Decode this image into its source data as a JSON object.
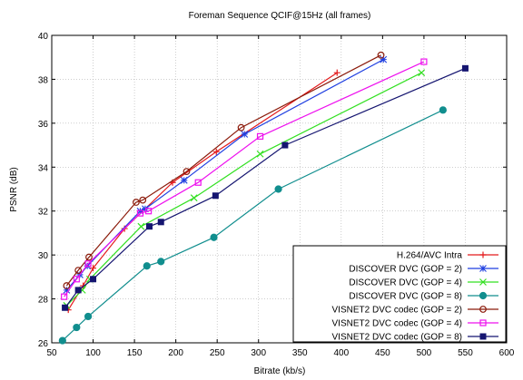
{
  "chart_data": {
    "type": "line",
    "title": "Foreman Sequence QCIF@15Hz (all frames)",
    "xlabel": "Bitrate (kb/s)",
    "ylabel": "PSNR (dB)",
    "xlim": [
      50,
      600
    ],
    "ylim": [
      26,
      40
    ],
    "xticks": [
      "50",
      "100",
      "150",
      "200",
      "250",
      "300",
      "350",
      "400",
      "450",
      "500",
      "550",
      "600"
    ],
    "yticks": [
      "26",
      "28",
      "30",
      "32",
      "34",
      "36",
      "38",
      "40"
    ],
    "grid": true,
    "legend_position": "bottom-right",
    "series": [
      {
        "name": "H.264/AVC Intra",
        "color": "#e41a1c",
        "marker": "plus",
        "x": [
          70,
          88,
          100,
          138,
          196,
          249,
          395
        ],
        "y": [
          27.5,
          28.6,
          29.4,
          31.2,
          33.3,
          34.7,
          38.3
        ]
      },
      {
        "name": "DISCOVER DVC (GOP = 2)",
        "color": "#1f3fe0",
        "marker": "star",
        "x": [
          68,
          84,
          93,
          157,
          163,
          210,
          283,
          451
        ],
        "y": [
          28.4,
          29.1,
          29.5,
          32.0,
          32.1,
          33.4,
          35.5,
          38.9
        ]
      },
      {
        "name": "DISCOVER DVC (GOP = 4)",
        "color": "#33e022",
        "marker": "cross",
        "x": [
          68,
          87,
          96,
          158,
          222,
          302,
          497
        ],
        "y": [
          27.7,
          28.4,
          28.9,
          31.3,
          32.6,
          34.6,
          38.3
        ]
      },
      {
        "name": "DISCOVER DVC (GOP = 8)",
        "color": "#118e8e",
        "marker": "circle",
        "x": [
          63,
          80,
          94,
          165,
          182,
          246,
          324,
          523
        ],
        "y": [
          26.1,
          26.7,
          27.2,
          29.5,
          29.7,
          30.8,
          33.0,
          36.6
        ]
      },
      {
        "name": "VISNET2 DVC codec (GOP = 2)",
        "color": "#8b1a0a",
        "marker": "open-circle",
        "x": [
          68,
          82,
          95,
          152,
          160,
          213,
          279,
          448
        ],
        "y": [
          28.6,
          29.3,
          29.9,
          32.4,
          32.5,
          33.8,
          35.8,
          39.1
        ]
      },
      {
        "name": "VISNET2 DVC codec (GOP = 4)",
        "color": "#ee11ee",
        "marker": "open-square",
        "x": [
          65,
          80,
          94,
          157,
          167,
          227,
          302,
          500
        ],
        "y": [
          28.1,
          28.9,
          29.6,
          31.9,
          32.0,
          33.3,
          35.4,
          38.8
        ]
      },
      {
        "name": "VISNET2 DVC codec (GOP = 8)",
        "color": "#151570",
        "marker": "filled-square",
        "x": [
          66,
          82,
          100,
          168,
          182,
          248,
          332,
          550
        ],
        "y": [
          27.6,
          28.4,
          28.9,
          31.3,
          31.5,
          32.7,
          35.0,
          38.5
        ]
      }
    ]
  }
}
